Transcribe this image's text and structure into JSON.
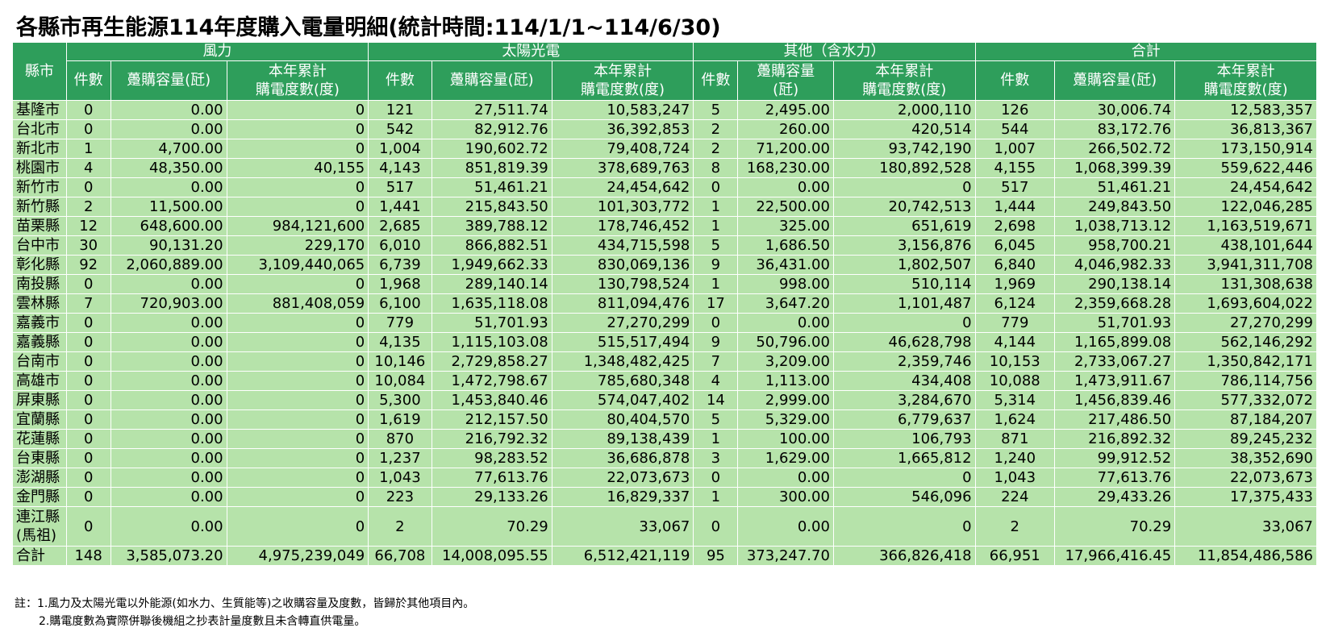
{
  "title": "各縣市再生能源114年度購入電量明細(統計時間:114/1/1~114/6/30)",
  "header": {
    "county": "縣市",
    "groups": [
      "風力",
      "太陽光電",
      "其他（含水力）",
      "合計"
    ],
    "count": "件數",
    "capacity": "躉購容量(瓩)",
    "capacity_split": [
      "躉購容量",
      "(瓩)"
    ],
    "energy": [
      "本年累計",
      "購電度數(度)"
    ]
  },
  "rows": [
    {
      "county": "基隆市",
      "wind": [
        "0",
        "0.00",
        "0"
      ],
      "solar": [
        "121",
        "27,511.74",
        "10,583,247"
      ],
      "other": [
        "5",
        "2,495.00",
        "2,000,110"
      ],
      "total": [
        "126",
        "30,006.74",
        "12,583,357"
      ]
    },
    {
      "county": "台北市",
      "wind": [
        "0",
        "0.00",
        "0"
      ],
      "solar": [
        "542",
        "82,912.76",
        "36,392,853"
      ],
      "other": [
        "2",
        "260.00",
        "420,514"
      ],
      "total": [
        "544",
        "83,172.76",
        "36,813,367"
      ]
    },
    {
      "county": "新北市",
      "wind": [
        "1",
        "4,700.00",
        "0"
      ],
      "solar": [
        "1,004",
        "190,602.72",
        "79,408,724"
      ],
      "other": [
        "2",
        "71,200.00",
        "93,742,190"
      ],
      "total": [
        "1,007",
        "266,502.72",
        "173,150,914"
      ]
    },
    {
      "county": "桃園市",
      "wind": [
        "4",
        "48,350.00",
        "40,155"
      ],
      "solar": [
        "4,143",
        "851,819.39",
        "378,689,763"
      ],
      "other": [
        "8",
        "168,230.00",
        "180,892,528"
      ],
      "total": [
        "4,155",
        "1,068,399.39",
        "559,622,446"
      ]
    },
    {
      "county": "新竹市",
      "wind": [
        "0",
        "0.00",
        "0"
      ],
      "solar": [
        "517",
        "51,461.21",
        "24,454,642"
      ],
      "other": [
        "0",
        "0.00",
        "0"
      ],
      "total": [
        "517",
        "51,461.21",
        "24,454,642"
      ]
    },
    {
      "county": "新竹縣",
      "wind": [
        "2",
        "11,500.00",
        "0"
      ],
      "solar": [
        "1,441",
        "215,843.50",
        "101,303,772"
      ],
      "other": [
        "1",
        "22,500.00",
        "20,742,513"
      ],
      "total": [
        "1,444",
        "249,843.50",
        "122,046,285"
      ]
    },
    {
      "county": "苗栗縣",
      "wind": [
        "12",
        "648,600.00",
        "984,121,600"
      ],
      "solar": [
        "2,685",
        "389,788.12",
        "178,746,452"
      ],
      "other": [
        "1",
        "325.00",
        "651,619"
      ],
      "total": [
        "2,698",
        "1,038,713.12",
        "1,163,519,671"
      ]
    },
    {
      "county": "台中市",
      "wind": [
        "30",
        "90,131.20",
        "229,170"
      ],
      "solar": [
        "6,010",
        "866,882.51",
        "434,715,598"
      ],
      "other": [
        "5",
        "1,686.50",
        "3,156,876"
      ],
      "total": [
        "6,045",
        "958,700.21",
        "438,101,644"
      ]
    },
    {
      "county": "彰化縣",
      "wind": [
        "92",
        "2,060,889.00",
        "3,109,440,065"
      ],
      "solar": [
        "6,739",
        "1,949,662.33",
        "830,069,136"
      ],
      "other": [
        "9",
        "36,431.00",
        "1,802,507"
      ],
      "total": [
        "6,840",
        "4,046,982.33",
        "3,941,311,708"
      ]
    },
    {
      "county": "南投縣",
      "wind": [
        "0",
        "0.00",
        "0"
      ],
      "solar": [
        "1,968",
        "289,140.14",
        "130,798,524"
      ],
      "other": [
        "1",
        "998.00",
        "510,114"
      ],
      "total": [
        "1,969",
        "290,138.14",
        "131,308,638"
      ]
    },
    {
      "county": "雲林縣",
      "wind": [
        "7",
        "720,903.00",
        "881,408,059"
      ],
      "solar": [
        "6,100",
        "1,635,118.08",
        "811,094,476"
      ],
      "other": [
        "17",
        "3,647.20",
        "1,101,487"
      ],
      "total": [
        "6,124",
        "2,359,668.28",
        "1,693,604,022"
      ]
    },
    {
      "county": "嘉義市",
      "wind": [
        "0",
        "0.00",
        "0"
      ],
      "solar": [
        "779",
        "51,701.93",
        "27,270,299"
      ],
      "other": [
        "0",
        "0.00",
        "0"
      ],
      "total": [
        "779",
        "51,701.93",
        "27,270,299"
      ]
    },
    {
      "county": "嘉義縣",
      "wind": [
        "0",
        "0.00",
        "0"
      ],
      "solar": [
        "4,135",
        "1,115,103.08",
        "515,517,494"
      ],
      "other": [
        "9",
        "50,796.00",
        "46,628,798"
      ],
      "total": [
        "4,144",
        "1,165,899.08",
        "562,146,292"
      ]
    },
    {
      "county": "台南市",
      "wind": [
        "0",
        "0.00",
        "0"
      ],
      "solar": [
        "10,146",
        "2,729,858.27",
        "1,348,482,425"
      ],
      "other": [
        "7",
        "3,209.00",
        "2,359,746"
      ],
      "total": [
        "10,153",
        "2,733,067.27",
        "1,350,842,171"
      ]
    },
    {
      "county": "高雄市",
      "wind": [
        "0",
        "0.00",
        "0"
      ],
      "solar": [
        "10,084",
        "1,472,798.67",
        "785,680,348"
      ],
      "other": [
        "4",
        "1,113.00",
        "434,408"
      ],
      "total": [
        "10,088",
        "1,473,911.67",
        "786,114,756"
      ]
    },
    {
      "county": "屏東縣",
      "wind": [
        "0",
        "0.00",
        "0"
      ],
      "solar": [
        "5,300",
        "1,453,840.46",
        "574,047,402"
      ],
      "other": [
        "14",
        "2,999.00",
        "3,284,670"
      ],
      "total": [
        "5,314",
        "1,456,839.46",
        "577,332,072"
      ]
    },
    {
      "county": "宜蘭縣",
      "wind": [
        "0",
        "0.00",
        "0"
      ],
      "solar": [
        "1,619",
        "212,157.50",
        "80,404,570"
      ],
      "other": [
        "5",
        "5,329.00",
        "6,779,637"
      ],
      "total": [
        "1,624",
        "217,486.50",
        "87,184,207"
      ]
    },
    {
      "county": "花蓮縣",
      "wind": [
        "0",
        "0.00",
        "0"
      ],
      "solar": [
        "870",
        "216,792.32",
        "89,138,439"
      ],
      "other": [
        "1",
        "100.00",
        "106,793"
      ],
      "total": [
        "871",
        "216,892.32",
        "89,245,232"
      ]
    },
    {
      "county": "台東縣",
      "wind": [
        "0",
        "0.00",
        "0"
      ],
      "solar": [
        "1,237",
        "98,283.52",
        "36,686,878"
      ],
      "other": [
        "3",
        "1,629.00",
        "1,665,812"
      ],
      "total": [
        "1,240",
        "99,912.52",
        "38,352,690"
      ]
    },
    {
      "county": "澎湖縣",
      "wind": [
        "0",
        "0.00",
        "0"
      ],
      "solar": [
        "1,043",
        "77,613.76",
        "22,073,673"
      ],
      "other": [
        "0",
        "0.00",
        "0"
      ],
      "total": [
        "1,043",
        "77,613.76",
        "22,073,673"
      ]
    },
    {
      "county": "金門縣",
      "wind": [
        "0",
        "0.00",
        "0"
      ],
      "solar": [
        "223",
        "29,133.26",
        "16,829,337"
      ],
      "other": [
        "1",
        "300.00",
        "546,096"
      ],
      "total": [
        "224",
        "29,433.26",
        "17,375,433"
      ]
    },
    {
      "county": "連江縣(馬祖)",
      "wind": [
        "0",
        "0.00",
        "0"
      ],
      "solar": [
        "2",
        "70.29",
        "33,067"
      ],
      "other": [
        "0",
        "0.00",
        "0"
      ],
      "total": [
        "2",
        "70.29",
        "33,067"
      ]
    }
  ],
  "total_row": {
    "county": "合計",
    "wind": [
      "148",
      "3,585,073.20",
      "4,975,239,049"
    ],
    "solar": [
      "66,708",
      "14,008,095.55",
      "6,512,421,119"
    ],
    "other": [
      "95",
      "373,247.70",
      "366,826,418"
    ],
    "total": [
      "66,951",
      "17,966,416.45",
      "11,854,486,586"
    ]
  },
  "notes": [
    "註：1.風力及太陽光電以外能源(如水力、生質能等)之收購容量及度數，皆歸於其他項目內。",
    "2.購電度數為實際併聯後機組之抄表計量度數且未含轉直供電量。"
  ],
  "colors": {
    "header_bg": "#2e9e5b",
    "header_text": "#ffffff",
    "cell_bg": "#b6e3aa",
    "grid_line": "#ffffff"
  }
}
